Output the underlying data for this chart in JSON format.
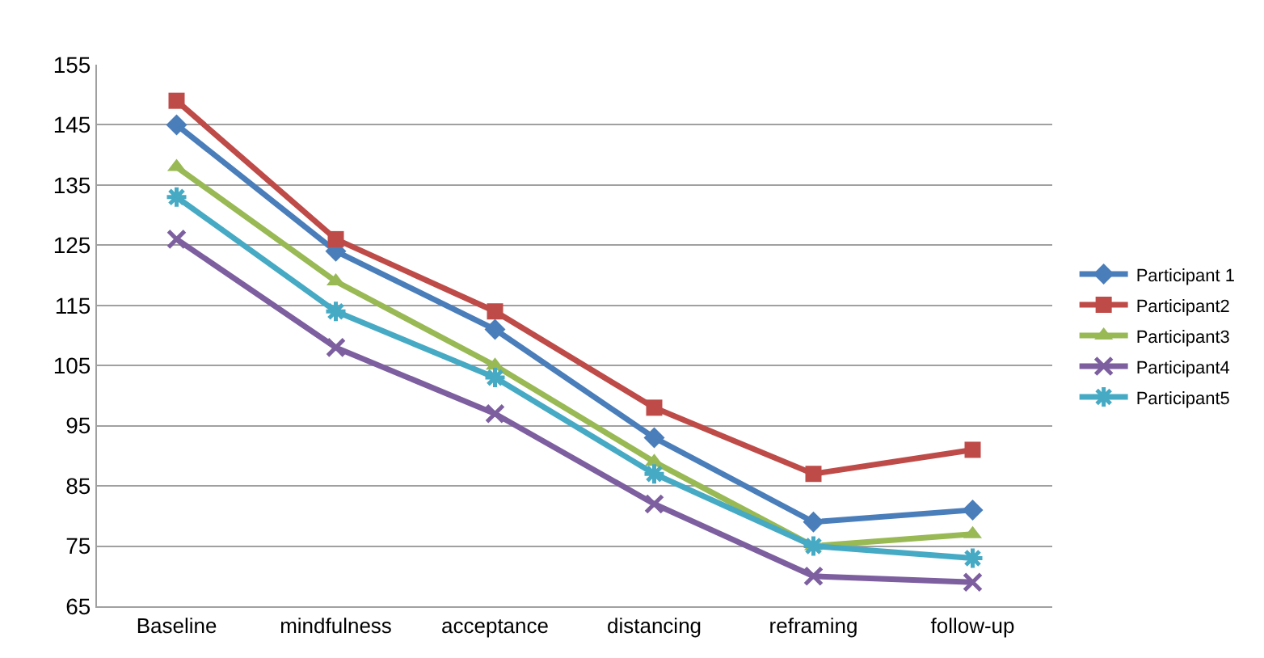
{
  "chart_data": {
    "type": "line",
    "categories": [
      "Baseline",
      "mindfulness",
      "acceptance",
      "distancing",
      "reframing",
      "follow-up"
    ],
    "series": [
      {
        "name": "Participant 1",
        "color": "#4a7ebb",
        "marker": "diamond",
        "values": [
          145,
          124,
          111,
          93,
          79,
          81
        ]
      },
      {
        "name": "Participant2",
        "color": "#be4b48",
        "marker": "square",
        "values": [
          149,
          126,
          114,
          98,
          87,
          91
        ]
      },
      {
        "name": "Participant3",
        "color": "#98b954",
        "marker": "triangle",
        "values": [
          138,
          119,
          105,
          89,
          75,
          77
        ]
      },
      {
        "name": "Participant4",
        "color": "#7d5fa0",
        "marker": "cross",
        "values": [
          126,
          108,
          97,
          82,
          70,
          69
        ]
      },
      {
        "name": "Participant5",
        "color": "#46aac5",
        "marker": "cross",
        "values": [
          133,
          114,
          103,
          87,
          75,
          73
        ]
      }
    ],
    "ylim": [
      65,
      155
    ],
    "yticks": [
      65,
      75,
      85,
      95,
      105,
      115,
      125,
      135,
      145,
      155
    ],
    "grid": "y",
    "legend": "right",
    "line_style": "solid"
  }
}
